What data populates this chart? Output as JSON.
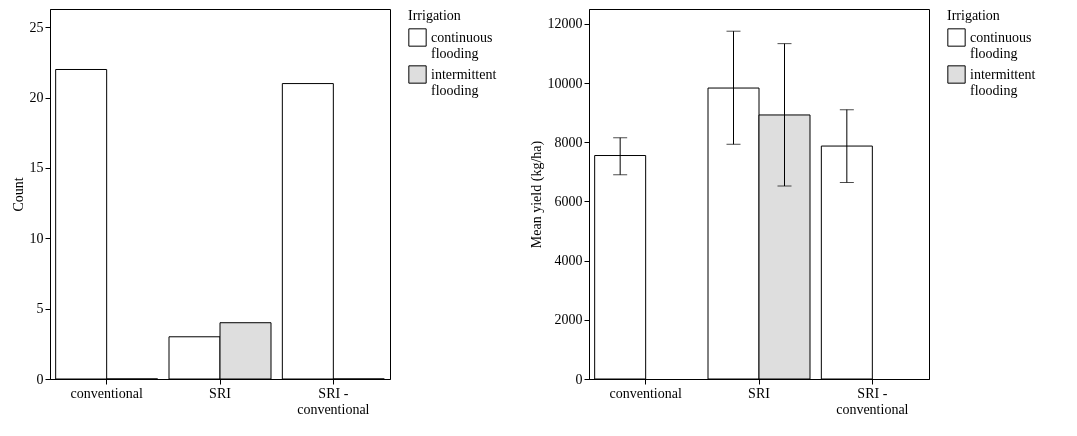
{
  "chart_data": [
    {
      "type": "bar",
      "ylabel": "Count",
      "legend_title": "Irrigation",
      "legend": "top right",
      "grid": false,
      "categories": [
        "conventional",
        "SRI",
        "SRI - conventional"
      ],
      "ylim": [
        0,
        26.3
      ],
      "yticks": [
        0,
        5,
        10,
        15,
        20,
        25
      ],
      "series": [
        {
          "name": "continuous flooding",
          "color": "#ffffff",
          "values": [
            22,
            3,
            21
          ]
        },
        {
          "name": "intermittent flooding",
          "color": "#dedede",
          "values": [
            0,
            4,
            0
          ]
        }
      ]
    },
    {
      "type": "bar",
      "ylabel": "Mean yield (kg/ha)",
      "legend_title": "Irrigation",
      "legend": "top right",
      "grid": false,
      "categories": [
        "conventional",
        "SRI",
        "SRI - conventional"
      ],
      "ylim": [
        0,
        12500
      ],
      "yticks": [
        0,
        2000,
        4000,
        6000,
        8000,
        10000,
        12000
      ],
      "series": [
        {
          "name": "continuous flooding",
          "color": "#ffffff",
          "values": [
            7550,
            9830,
            7870
          ],
          "errors": [
            [
              6900,
              8150
            ],
            [
              7930,
              11750
            ],
            [
              6640,
              9100
            ]
          ]
        },
        {
          "name": "intermittent flooding",
          "color": "#dedede",
          "values": [
            null,
            8920,
            null
          ],
          "errors": [
            null,
            [
              6520,
              11330
            ],
            null
          ]
        }
      ]
    }
  ]
}
